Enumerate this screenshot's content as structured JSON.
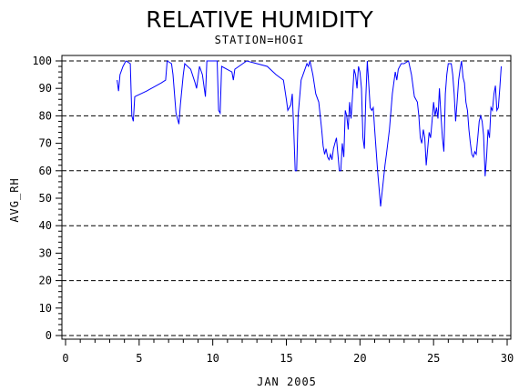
{
  "chart_data": {
    "type": "line",
    "title": "RELATIVE HUMIDITY",
    "subtitle": "STATION=HOGI",
    "xlabel": "JAN 2005",
    "ylabel": "AVG_RH",
    "xlim": [
      0,
      30
    ],
    "ylim": [
      0,
      100
    ],
    "xticks": [
      0,
      5,
      10,
      15,
      20,
      25,
      30
    ],
    "yticks": [
      0,
      10,
      20,
      30,
      40,
      50,
      60,
      70,
      80,
      90,
      100
    ],
    "grid_y_dashed": [
      0,
      20,
      40,
      60,
      80,
      100
    ],
    "series": [
      {
        "color": "#0000ff",
        "points": [
          [
            3.5,
            93
          ],
          [
            3.6,
            89
          ],
          [
            3.7,
            95
          ],
          [
            3.9,
            98
          ],
          [
            4.1,
            100
          ],
          [
            4.4,
            99
          ],
          [
            4.5,
            80
          ],
          [
            4.6,
            78
          ],
          [
            4.7,
            87
          ],
          [
            5.5,
            89
          ],
          [
            6.5,
            92
          ],
          [
            6.8,
            93
          ],
          [
            6.9,
            100
          ],
          [
            7.2,
            99
          ],
          [
            7.3,
            95
          ],
          [
            7.5,
            81
          ],
          [
            7.7,
            77
          ],
          [
            7.8,
            84
          ],
          [
            8.0,
            95
          ],
          [
            8.1,
            99
          ],
          [
            8.5,
            97
          ],
          [
            8.8,
            92
          ],
          [
            8.9,
            90
          ],
          [
            9.1,
            98
          ],
          [
            9.3,
            95
          ],
          [
            9.5,
            87
          ],
          [
            9.6,
            100
          ],
          [
            10.3,
            100
          ],
          [
            10.4,
            82
          ],
          [
            10.5,
            81
          ],
          [
            10.6,
            98
          ],
          [
            11.3,
            96
          ],
          [
            11.4,
            93
          ],
          [
            11.5,
            97
          ],
          [
            12.3,
            100
          ],
          [
            13.0,
            99
          ],
          [
            13.7,
            98
          ],
          [
            14.3,
            95
          ],
          [
            14.8,
            93
          ],
          [
            15.0,
            86
          ],
          [
            15.1,
            82
          ],
          [
            15.3,
            84
          ],
          [
            15.4,
            88
          ],
          [
            15.5,
            75
          ],
          [
            15.6,
            60
          ],
          [
            15.7,
            60
          ],
          [
            15.8,
            80
          ],
          [
            16.0,
            93
          ],
          [
            16.2,
            96
          ],
          [
            16.4,
            99
          ],
          [
            16.5,
            98
          ],
          [
            16.6,
            100
          ],
          [
            16.8,
            95
          ],
          [
            17.0,
            88
          ],
          [
            17.2,
            85
          ],
          [
            17.4,
            75
          ],
          [
            17.5,
            69
          ],
          [
            17.6,
            66
          ],
          [
            17.7,
            68
          ],
          [
            17.8,
            65
          ],
          [
            17.9,
            64
          ],
          [
            18.0,
            66
          ],
          [
            18.1,
            64
          ],
          [
            18.2,
            68
          ],
          [
            18.3,
            70
          ],
          [
            18.4,
            72
          ],
          [
            18.5,
            66
          ],
          [
            18.6,
            60
          ],
          [
            18.7,
            60
          ],
          [
            18.8,
            70
          ],
          [
            18.9,
            65
          ],
          [
            19.0,
            82
          ],
          [
            19.1,
            80
          ],
          [
            19.2,
            75
          ],
          [
            19.3,
            85
          ],
          [
            19.4,
            79
          ],
          [
            19.5,
            88
          ],
          [
            19.6,
            97
          ],
          [
            19.7,
            95
          ],
          [
            19.8,
            90
          ],
          [
            19.9,
            98
          ],
          [
            20.0,
            96
          ],
          [
            20.1,
            90
          ],
          [
            20.2,
            72
          ],
          [
            20.3,
            68
          ],
          [
            20.4,
            87
          ],
          [
            20.5,
            100
          ],
          [
            20.7,
            83
          ],
          [
            20.8,
            82
          ],
          [
            20.9,
            83
          ],
          [
            21.0,
            75
          ],
          [
            21.2,
            60
          ],
          [
            21.4,
            47
          ],
          [
            21.5,
            52
          ],
          [
            21.7,
            62
          ],
          [
            21.8,
            66
          ],
          [
            22.0,
            75
          ],
          [
            22.2,
            88
          ],
          [
            22.4,
            96
          ],
          [
            22.5,
            93
          ],
          [
            22.6,
            97
          ],
          [
            22.8,
            99
          ],
          [
            23.0,
            99
          ],
          [
            23.3,
            100
          ],
          [
            23.5,
            95
          ],
          [
            23.7,
            87
          ],
          [
            23.9,
            85
          ],
          [
            24.0,
            80
          ],
          [
            24.1,
            72
          ],
          [
            24.2,
            70
          ],
          [
            24.3,
            75
          ],
          [
            24.4,
            72
          ],
          [
            24.5,
            62
          ],
          [
            24.6,
            68
          ],
          [
            24.7,
            74
          ],
          [
            24.8,
            72
          ],
          [
            24.9,
            78
          ],
          [
            25.0,
            85
          ],
          [
            25.1,
            80
          ],
          [
            25.2,
            83
          ],
          [
            25.3,
            79
          ],
          [
            25.4,
            90
          ],
          [
            25.5,
            80
          ],
          [
            25.6,
            72
          ],
          [
            25.7,
            67
          ],
          [
            25.8,
            88
          ],
          [
            25.9,
            95
          ],
          [
            26.0,
            99
          ],
          [
            26.2,
            99
          ],
          [
            26.3,
            95
          ],
          [
            26.4,
            88
          ],
          [
            26.5,
            78
          ],
          [
            26.6,
            85
          ],
          [
            26.7,
            93
          ],
          [
            26.8,
            97
          ],
          [
            26.9,
            100
          ],
          [
            27.0,
            94
          ],
          [
            27.1,
            92
          ],
          [
            27.2,
            85
          ],
          [
            27.3,
            82
          ],
          [
            27.4,
            75
          ],
          [
            27.5,
            70
          ],
          [
            27.6,
            66
          ],
          [
            27.7,
            65
          ],
          [
            27.8,
            67
          ],
          [
            27.9,
            66
          ],
          [
            28.0,
            72
          ],
          [
            28.1,
            78
          ],
          [
            28.2,
            80
          ],
          [
            28.3,
            78
          ],
          [
            28.4,
            73
          ],
          [
            28.5,
            58
          ],
          [
            28.6,
            65
          ],
          [
            28.7,
            75
          ],
          [
            28.8,
            72
          ],
          [
            28.9,
            83
          ],
          [
            29.0,
            82
          ],
          [
            29.1,
            88
          ],
          [
            29.2,
            91
          ],
          [
            29.3,
            82
          ],
          [
            29.4,
            83
          ],
          [
            29.5,
            90
          ],
          [
            29.6,
            98
          ]
        ]
      }
    ]
  }
}
